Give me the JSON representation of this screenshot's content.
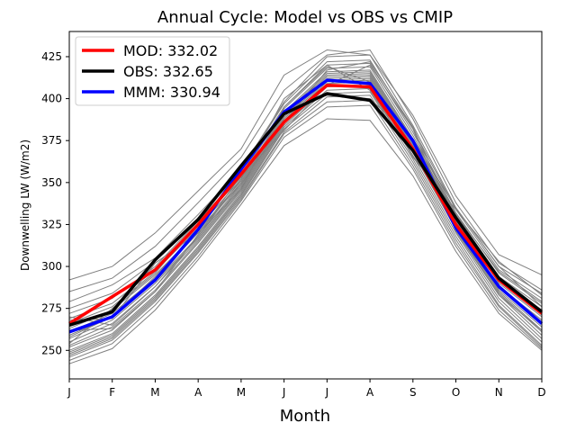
{
  "chart_data": {
    "type": "line",
    "title": "Annual Cycle: Model vs OBS vs CMIP",
    "xlabel": "Month",
    "ylabel": "Downwelling LW (W/m2)",
    "categories": [
      "J",
      "F",
      "M",
      "A",
      "M",
      "J",
      "J",
      "A",
      "S",
      "O",
      "N",
      "D"
    ],
    "ylim": [
      233,
      440
    ],
    "yticks": [
      250,
      275,
      300,
      325,
      350,
      375,
      400,
      425
    ],
    "grid": false,
    "legend_position": "top-left",
    "series": [
      {
        "name": "MOD: 332.02",
        "color": "#ff0000",
        "values": [
          266,
          282,
          298,
          325,
          355,
          386,
          408,
          407,
          370,
          325,
          292,
          272
        ]
      },
      {
        "name": "OBS: 332.65",
        "color": "#000000",
        "values": [
          265,
          273,
          304,
          328,
          360,
          391,
          403,
          399,
          369,
          329,
          293,
          273
        ]
      },
      {
        "name": "MMM: 330.94",
        "color": "#0000ff",
        "values": [
          261,
          270,
          292,
          322,
          358,
          392,
          411,
          409,
          375,
          323,
          288,
          266
        ]
      }
    ],
    "cmip_color": "#808080",
    "cmip_models": [
      [
        292,
        300,
        320,
        345,
        370,
        414,
        429,
        426,
        390,
        342,
        307,
        295
      ],
      [
        285,
        293,
        312,
        338,
        365,
        405,
        426,
        429,
        388,
        338,
        302,
        286
      ],
      [
        279,
        289,
        305,
        331,
        358,
        398,
        425,
        426,
        384,
        335,
        300,
        284
      ],
      [
        275,
        284,
        303,
        329,
        357,
        397,
        422,
        423,
        382,
        334,
        298,
        281
      ],
      [
        272,
        281,
        300,
        327,
        355,
        395,
        420,
        421,
        380,
        332,
        296,
        278
      ],
      [
        269,
        278,
        298,
        325,
        353,
        394,
        418,
        419,
        378,
        331,
        294,
        276
      ],
      [
        266,
        276,
        297,
        323,
        352,
        392,
        416,
        417,
        376,
        330,
        292,
        274
      ],
      [
        263,
        274,
        295,
        321,
        351,
        391,
        415,
        416,
        375,
        329,
        291,
        272
      ],
      [
        261,
        272,
        293,
        320,
        350,
        390,
        414,
        415,
        374,
        328,
        290,
        270
      ],
      [
        259,
        270,
        291,
        318,
        349,
        389,
        413,
        414,
        373,
        327,
        288,
        268
      ],
      [
        257,
        268,
        290,
        317,
        348,
        388,
        412,
        413,
        372,
        326,
        287,
        266
      ],
      [
        255,
        266,
        288,
        316,
        347,
        387,
        411,
        412,
        371,
        325,
        286,
        264
      ],
      [
        253,
        264,
        286,
        315,
        346,
        386,
        410,
        411,
        370,
        324,
        285,
        262
      ],
      [
        252,
        262,
        285,
        314,
        345,
        385,
        409,
        410,
        369,
        323,
        284,
        261
      ],
      [
        250,
        260,
        283,
        312,
        344,
        384,
        407,
        408,
        368,
        322,
        283,
        259
      ],
      [
        249,
        259,
        282,
        311,
        343,
        383,
        405,
        406,
        366,
        320,
        281,
        257
      ],
      [
        248,
        258,
        281,
        310,
        342,
        382,
        403,
        404,
        364,
        318,
        279,
        255
      ],
      [
        247,
        257,
        280,
        309,
        341,
        380,
        401,
        402,
        362,
        316,
        277,
        253
      ],
      [
        246,
        256,
        279,
        308,
        340,
        379,
        398,
        399,
        360,
        314,
        276,
        252
      ],
      [
        244,
        254,
        277,
        306,
        339,
        377,
        395,
        396,
        358,
        312,
        274,
        251
      ],
      [
        242,
        251,
        274,
        304,
        337,
        372,
        388,
        387,
        354,
        309,
        272,
        250
      ],
      [
        270,
        265,
        288,
        318,
        352,
        400,
        420,
        405,
        366,
        331,
        297,
        279
      ],
      [
        258,
        270,
        294,
        322,
        349,
        386,
        417,
        422,
        383,
        327,
        291,
        271
      ],
      [
        262,
        263,
        285,
        319,
        354,
        393,
        402,
        400,
        376,
        335,
        300,
        276
      ],
      [
        254,
        275,
        296,
        326,
        353,
        381,
        408,
        420,
        382,
        321,
        283,
        262
      ],
      [
        268,
        269,
        302,
        320,
        346,
        395,
        419,
        410,
        365,
        334,
        303,
        283
      ]
    ]
  }
}
